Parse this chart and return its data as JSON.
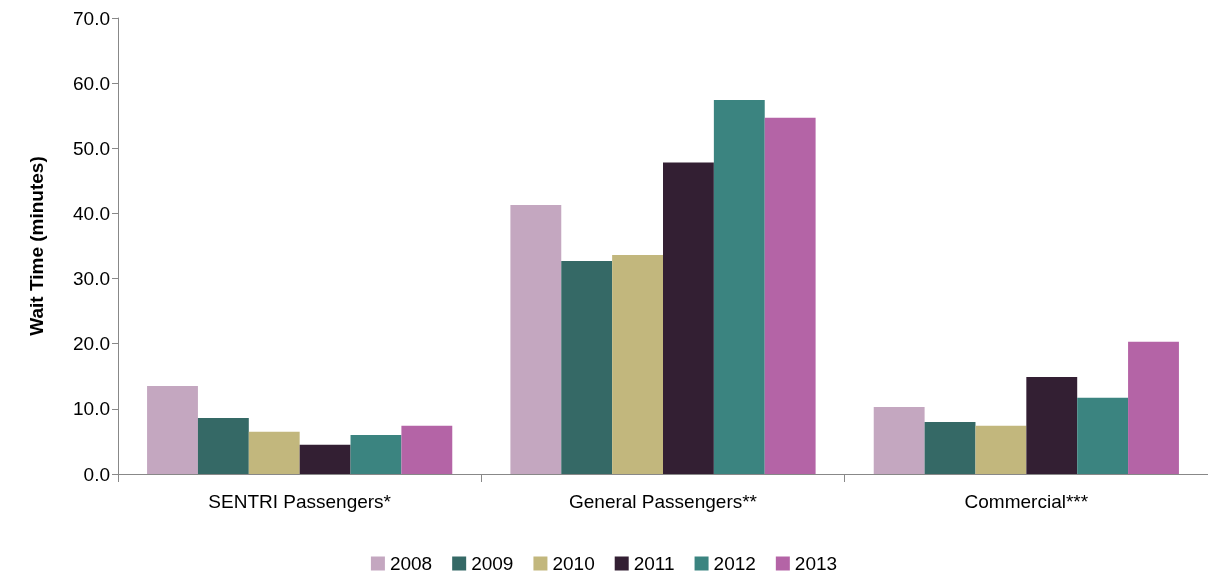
{
  "chart_data": {
    "type": "bar",
    "ylabel": "Wait Time (minutes)",
    "categories": [
      "SENTRI Passengers*",
      "General Passengers**",
      "Commercial***"
    ],
    "series": [
      {
        "name": "2008",
        "color": "#c4a7c0",
        "values": [
          13.5,
          41.3,
          10.3
        ]
      },
      {
        "name": "2009",
        "color": "#356966",
        "values": [
          8.6,
          32.7,
          8.0
        ]
      },
      {
        "name": "2010",
        "color": "#c2b77d",
        "values": [
          6.5,
          33.6,
          7.4
        ]
      },
      {
        "name": "2011",
        "color": "#331f33",
        "values": [
          4.5,
          47.8,
          14.9
        ]
      },
      {
        "name": "2012",
        "color": "#3b8480",
        "values": [
          6.0,
          57.4,
          11.7
        ]
      },
      {
        "name": "2013",
        "color": "#b464a6",
        "values": [
          7.4,
          54.7,
          20.3
        ]
      }
    ],
    "ylim": [
      0,
      70
    ],
    "yticks": [
      {
        "value": 0,
        "label": "0.0"
      },
      {
        "value": 10,
        "label": "10.0"
      },
      {
        "value": 20,
        "label": "20.0"
      },
      {
        "value": 30,
        "label": "30.0"
      },
      {
        "value": 40,
        "label": "40.0"
      },
      {
        "value": 50,
        "label": "50.0"
      },
      {
        "value": 60,
        "label": "60.0"
      },
      {
        "value": 70,
        "label": "70.0"
      }
    ],
    "grid": false,
    "legend": "bottom"
  }
}
